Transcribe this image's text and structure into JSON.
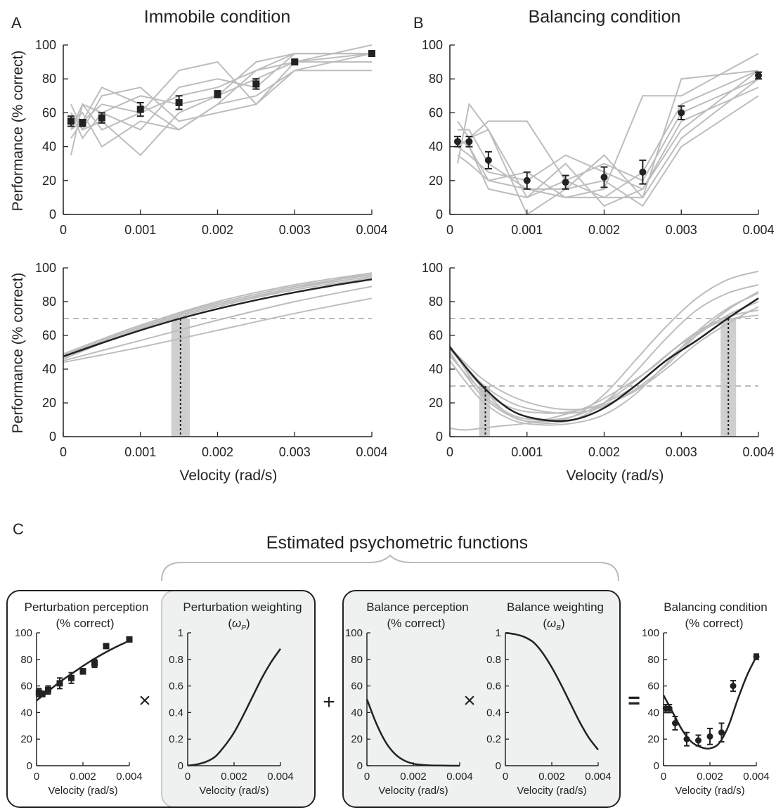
{
  "labels": {
    "panel_a": "A",
    "panel_b": "B",
    "panel_c": "C",
    "title_a": "Immobile condition",
    "title_b": "Balancing condition",
    "ylabel": "Performance (% correct)",
    "xlabel": "Velocity (rad/s)",
    "section_title": "Estimated psychometric functions",
    "box1_title_line1": "Perturbation perception",
    "box1_title_line2": "(% correct)",
    "box2_title_line1": "Perturbation weighting",
    "box2_sym": "ω",
    "box2_sub": "P",
    "box3_title_line1": "Balance perception",
    "box3_title_line2": "(% correct)",
    "box4_title_line1": "Balance weighting",
    "box4_sym": "ω",
    "box4_sub": "B",
    "box5_title_line1": "Balancing condition",
    "box5_title_line2": "(% correct)",
    "op_times": "×",
    "op_plus": "+",
    "op_equals": "="
  },
  "colors": {
    "mean": "#222222",
    "subjects": "#bdbdbd",
    "threshold_band": "#cfcfcf",
    "box_shade": "#eff0f0"
  },
  "chart_data": [
    {
      "id": "A_top",
      "type": "line",
      "xlabel": "",
      "ylabel": "Performance (% correct)",
      "xlim": [
        0,
        0.004
      ],
      "ylim": [
        0,
        100
      ],
      "xticks": [
        "0",
        "0.001",
        "0.002",
        "0.003",
        "0.004"
      ],
      "yticks": [
        "0",
        "20",
        "40",
        "60",
        "80",
        "100"
      ],
      "x": [
        0.0001,
        0.00025,
        0.0005,
        0.001,
        0.0015,
        0.002,
        0.0025,
        0.003,
        0.004
      ],
      "mean": [
        55,
        54,
        57,
        62,
        66,
        71,
        77,
        90,
        95
      ],
      "err": [
        3,
        2,
        3,
        4,
        4,
        2,
        3,
        1,
        1
      ],
      "marker": "square",
      "subjects": [
        [
          35,
          65,
          50,
          60,
          70,
          75,
          85,
          95,
          95
        ],
        [
          45,
          55,
          75,
          65,
          50,
          65,
          85,
          90,
          100
        ],
        [
          60,
          45,
          60,
          70,
          65,
          70,
          80,
          90,
          95
        ],
        [
          65,
          50,
          55,
          35,
          60,
          70,
          90,
          95,
          95
        ],
        [
          55,
          60,
          40,
          55,
          50,
          65,
          70,
          85,
          95
        ],
        [
          50,
          55,
          65,
          60,
          85,
          90,
          65,
          90,
          90
        ],
        [
          60,
          50,
          70,
          75,
          55,
          60,
          65,
          85,
          85
        ],
        [
          50,
          65,
          60,
          50,
          75,
          80,
          75,
          95,
          95
        ]
      ]
    },
    {
      "id": "B_top",
      "type": "line",
      "xlabel": "",
      "ylabel": "",
      "xlim": [
        0,
        0.004
      ],
      "ylim": [
        0,
        100
      ],
      "xticks": [
        "0",
        "0.001",
        "0.002",
        "0.003",
        "0.004"
      ],
      "yticks": [
        "0",
        "20",
        "40",
        "60",
        "80",
        "100"
      ],
      "x": [
        0.0001,
        0.00025,
        0.0005,
        0.001,
        0.0015,
        0.002,
        0.0025,
        0.003,
        0.004
      ],
      "mean": [
        43,
        43,
        32,
        20,
        19,
        22,
        25,
        60,
        82
      ],
      "err": [
        3,
        3,
        5,
        5,
        4,
        6,
        7,
        4,
        2
      ],
      "marker": "circle",
      "subjects": [
        [
          45,
          40,
          20,
          15,
          10,
          15,
          70,
          70,
          95
        ],
        [
          55,
          45,
          55,
          55,
          20,
          10,
          10,
          80,
          85
        ],
        [
          30,
          65,
          50,
          10,
          20,
          30,
          20,
          60,
          80
        ],
        [
          40,
          35,
          25,
          20,
          35,
          25,
          15,
          50,
          85
        ],
        [
          50,
          50,
          30,
          15,
          15,
          35,
          10,
          45,
          80
        ],
        [
          45,
          40,
          15,
          10,
          30,
          5,
          15,
          55,
          75
        ],
        [
          40,
          45,
          50,
          0,
          15,
          20,
          5,
          40,
          70
        ],
        [
          35,
          30,
          20,
          25,
          10,
          10,
          25,
          65,
          85
        ]
      ]
    },
    {
      "id": "A_bottom",
      "type": "line",
      "xlabel": "Velocity (rad/s)",
      "ylabel": "Performance (% correct)",
      "xlim": [
        0,
        0.004
      ],
      "ylim": [
        0,
        100
      ],
      "xticks": [
        "0",
        "0.001",
        "0.002",
        "0.003",
        "0.004"
      ],
      "yticks": [
        "0",
        "20",
        "40",
        "60",
        "80",
        "100"
      ],
      "threshold_y": 70,
      "threshold_x": 0.00152,
      "threshold_band": [
        0.0014,
        0.00164
      ],
      "mean_fit": {
        "x": [
          0,
          0.0005,
          0.001,
          0.0015,
          0.002,
          0.0025,
          0.003,
          0.0035,
          0.004
        ],
        "y": [
          47.5,
          55.5,
          63,
          69.8,
          75.7,
          80.9,
          85.5,
          89.6,
          93.2
        ]
      },
      "subject_fits": [
        {
          "x": [
            0,
            0.001,
            0.002,
            0.003,
            0.004
          ],
          "y": [
            49,
            66,
            79,
            89,
            96
          ]
        },
        {
          "x": [
            0,
            0.001,
            0.002,
            0.003,
            0.004
          ],
          "y": [
            48,
            65,
            78,
            88,
            95
          ]
        },
        {
          "x": [
            0,
            0.001,
            0.002,
            0.003,
            0.004
          ],
          "y": [
            47,
            65,
            78,
            88,
            97
          ]
        },
        {
          "x": [
            0,
            0.001,
            0.002,
            0.003,
            0.004
          ],
          "y": [
            46,
            64,
            77,
            87,
            94
          ]
        },
        {
          "x": [
            0,
            0.001,
            0.002,
            0.003,
            0.004
          ],
          "y": [
            49,
            66,
            80,
            90,
            97
          ]
        },
        {
          "x": [
            0,
            0.001,
            0.002,
            0.003,
            0.004
          ],
          "y": [
            45,
            57,
            69,
            80,
            89
          ]
        },
        {
          "x": [
            0,
            0.001,
            0.002,
            0.003,
            0.004
          ],
          "y": [
            44,
            53,
            63,
            73,
            82
          ]
        }
      ]
    },
    {
      "id": "B_bottom",
      "type": "line",
      "xlabel": "Velocity (rad/s)",
      "ylabel": "",
      "xlim": [
        0,
        0.004
      ],
      "ylim": [
        0,
        100
      ],
      "xticks": [
        "0",
        "0.001",
        "0.002",
        "0.003",
        "0.004"
      ],
      "yticks": [
        "0",
        "20",
        "40",
        "60",
        "80",
        "100"
      ],
      "threshold_y_high": 70,
      "threshold_y_low": 30,
      "threshold_low_x": 0.00046,
      "threshold_low_band": [
        0.00038,
        0.00052
      ],
      "threshold_high_x": 0.00361,
      "threshold_high_band": [
        0.00351,
        0.00371
      ],
      "mean_fit": {
        "x": [
          0,
          0.0004,
          0.0008,
          0.0012,
          0.0016,
          0.002,
          0.0024,
          0.0028,
          0.0032,
          0.0036,
          0.004
        ],
        "y": [
          53,
          31,
          15.5,
          10,
          10,
          17,
          30,
          45,
          57,
          70,
          82
        ]
      },
      "subject_fits": [
        {
          "x": [
            0,
            0.0004,
            0.0008,
            0.0012,
            0.0016,
            0.002,
            0.0024,
            0.0028,
            0.0032,
            0.0036,
            0.004
          ],
          "y": [
            52,
            30,
            12,
            9,
            12,
            25,
            45,
            65,
            82,
            93,
            98
          ]
        },
        {
          "x": [
            0,
            0.0004,
            0.0008,
            0.0012,
            0.0016,
            0.002,
            0.0024,
            0.0028,
            0.0032,
            0.0036,
            0.004
          ],
          "y": [
            52,
            32,
            20,
            15,
            14,
            18,
            28,
            42,
            60,
            75,
            86
          ]
        },
        {
          "x": [
            0,
            0.0004,
            0.0008,
            0.0012,
            0.0016,
            0.002,
            0.0024,
            0.0028,
            0.0032,
            0.0036,
            0.004
          ],
          "y": [
            50,
            25,
            12,
            8,
            10,
            20,
            38,
            58,
            75,
            85,
            90
          ]
        },
        {
          "x": [
            0,
            0.0004,
            0.0008,
            0.0012,
            0.0016,
            0.002,
            0.0024,
            0.0028,
            0.0032,
            0.0036,
            0.004
          ],
          "y": [
            48,
            28,
            17,
            14,
            15,
            20,
            30,
            45,
            60,
            72,
            80
          ]
        },
        {
          "x": [
            0,
            0.0004,
            0.0008,
            0.0012,
            0.0016,
            0.002,
            0.0024,
            0.0028,
            0.0032,
            0.0036,
            0.004
          ],
          "y": [
            45,
            22,
            10,
            7,
            8,
            13,
            25,
            43,
            62,
            76,
            85
          ]
        },
        {
          "x": [
            0,
            0.0004,
            0.0008,
            0.0012,
            0.0016,
            0.002,
            0.0024,
            0.0028,
            0.0032,
            0.0036,
            0.004
          ],
          "y": [
            53,
            35,
            24,
            18,
            16,
            19,
            27,
            40,
            55,
            67,
            77
          ]
        },
        {
          "x": [
            0,
            0.0002,
            0.0006,
            0.001,
            0.0014,
            0.0018,
            0.0022,
            0.0026,
            0.003,
            0.0035,
            0.004
          ],
          "y": [
            5,
            4,
            6,
            8,
            12,
            18,
            28,
            40,
            55,
            68,
            72
          ]
        },
        {
          "x": [
            0,
            0.0004,
            0.0008,
            0.0012,
            0.0016,
            0.002,
            0.0024,
            0.0028,
            0.0032,
            0.0036,
            0.004
          ],
          "y": [
            54,
            27,
            13,
            10,
            12,
            20,
            33,
            48,
            62,
            71,
            75
          ]
        }
      ]
    },
    {
      "id": "C_perturbation_perception",
      "type": "scatter",
      "xlabel": "Velocity (rad/s)",
      "xlim": [
        0,
        0.004
      ],
      "ylim": [
        0,
        100
      ],
      "xticks": [
        "0",
        "0.002",
        "0.004"
      ],
      "yticks": [
        "0",
        "20",
        "40",
        "60",
        "80",
        "100"
      ],
      "x": [
        0.0001,
        0.00025,
        0.0005,
        0.001,
        0.0015,
        0.002,
        0.0025,
        0.003,
        0.004
      ],
      "mean": [
        55,
        54,
        57,
        62,
        66,
        71,
        77,
        90,
        95
      ],
      "err": [
        3,
        2,
        3,
        4,
        4,
        2,
        3,
        1,
        1
      ],
      "marker": "square",
      "fit": {
        "x": [
          0,
          0.0005,
          0.001,
          0.0015,
          0.002,
          0.0025,
          0.003,
          0.0035,
          0.004
        ],
        "y": [
          49,
          56,
          63,
          69,
          75,
          80.5,
          85.5,
          90,
          94
        ]
      }
    },
    {
      "id": "C_perturbation_weighting",
      "type": "line",
      "xlabel": "Velocity (rad/s)",
      "xlim": [
        0,
        0.004
      ],
      "ylim": [
        0,
        1
      ],
      "xticks": [
        "0",
        "0.002",
        "0.004"
      ],
      "yticks": [
        "0",
        "0.2",
        "0.4",
        "0.6",
        "0.8",
        "1"
      ],
      "fit": {
        "x": [
          0,
          0.0004,
          0.0008,
          0.0012,
          0.0016,
          0.002,
          0.0024,
          0.0028,
          0.0032,
          0.0036,
          0.004
        ],
        "y": [
          0,
          0.01,
          0.03,
          0.07,
          0.15,
          0.25,
          0.38,
          0.52,
          0.66,
          0.78,
          0.88
        ]
      }
    },
    {
      "id": "C_balance_perception",
      "type": "line",
      "xlabel": "Velocity (rad/s)",
      "xlim": [
        0,
        0.004
      ],
      "ylim": [
        0,
        100
      ],
      "xticks": [
        "0",
        "0.002",
        "0.004"
      ],
      "yticks": [
        "0",
        "20",
        "40",
        "60",
        "80",
        "100"
      ],
      "fit": {
        "x": [
          0,
          0.0004,
          0.0008,
          0.0012,
          0.0016,
          0.002,
          0.0024,
          0.0028,
          0.0032,
          0.0036,
          0.004
        ],
        "y": [
          50,
          32,
          18,
          9,
          4,
          1.5,
          0.6,
          0.2,
          0.1,
          0,
          0
        ]
      }
    },
    {
      "id": "C_balance_weighting",
      "type": "line",
      "xlabel": "Velocity (rad/s)",
      "xlim": [
        0,
        0.004
      ],
      "ylim": [
        0,
        1
      ],
      "xticks": [
        "0",
        "0.002",
        "0.004"
      ],
      "yticks": [
        "0",
        "0.2",
        "0.4",
        "0.6",
        "0.8",
        "1"
      ],
      "fit": {
        "x": [
          0,
          0.0004,
          0.0008,
          0.0012,
          0.0016,
          0.002,
          0.0024,
          0.0028,
          0.0032,
          0.0036,
          0.004
        ],
        "y": [
          1,
          0.99,
          0.97,
          0.93,
          0.85,
          0.74,
          0.61,
          0.47,
          0.33,
          0.21,
          0.12
        ]
      }
    },
    {
      "id": "C_balancing_condition",
      "type": "scatter",
      "xlabel": "Velocity (rad/s)",
      "xlim": [
        0,
        0.004
      ],
      "ylim": [
        0,
        100
      ],
      "xticks": [
        "0",
        "0.002",
        "0.004"
      ],
      "yticks": [
        "0",
        "20",
        "40",
        "60",
        "80",
        "100"
      ],
      "x": [
        0.0001,
        0.00025,
        0.0005,
        0.001,
        0.0015,
        0.002,
        0.0025,
        0.003,
        0.004
      ],
      "mean": [
        43,
        43,
        32,
        20,
        19,
        22,
        25,
        60,
        82
      ],
      "err": [
        3,
        3,
        5,
        5,
        4,
        6,
        7,
        4,
        2
      ],
      "marker": "circle",
      "fit": {
        "x": [
          0,
          0.0004,
          0.0008,
          0.0012,
          0.0016,
          0.002,
          0.0024,
          0.0028,
          0.0032,
          0.0036,
          0.004
        ],
        "y": [
          53,
          40,
          27,
          18,
          14,
          13,
          17,
          30,
          50,
          68,
          82
        ]
      }
    }
  ]
}
